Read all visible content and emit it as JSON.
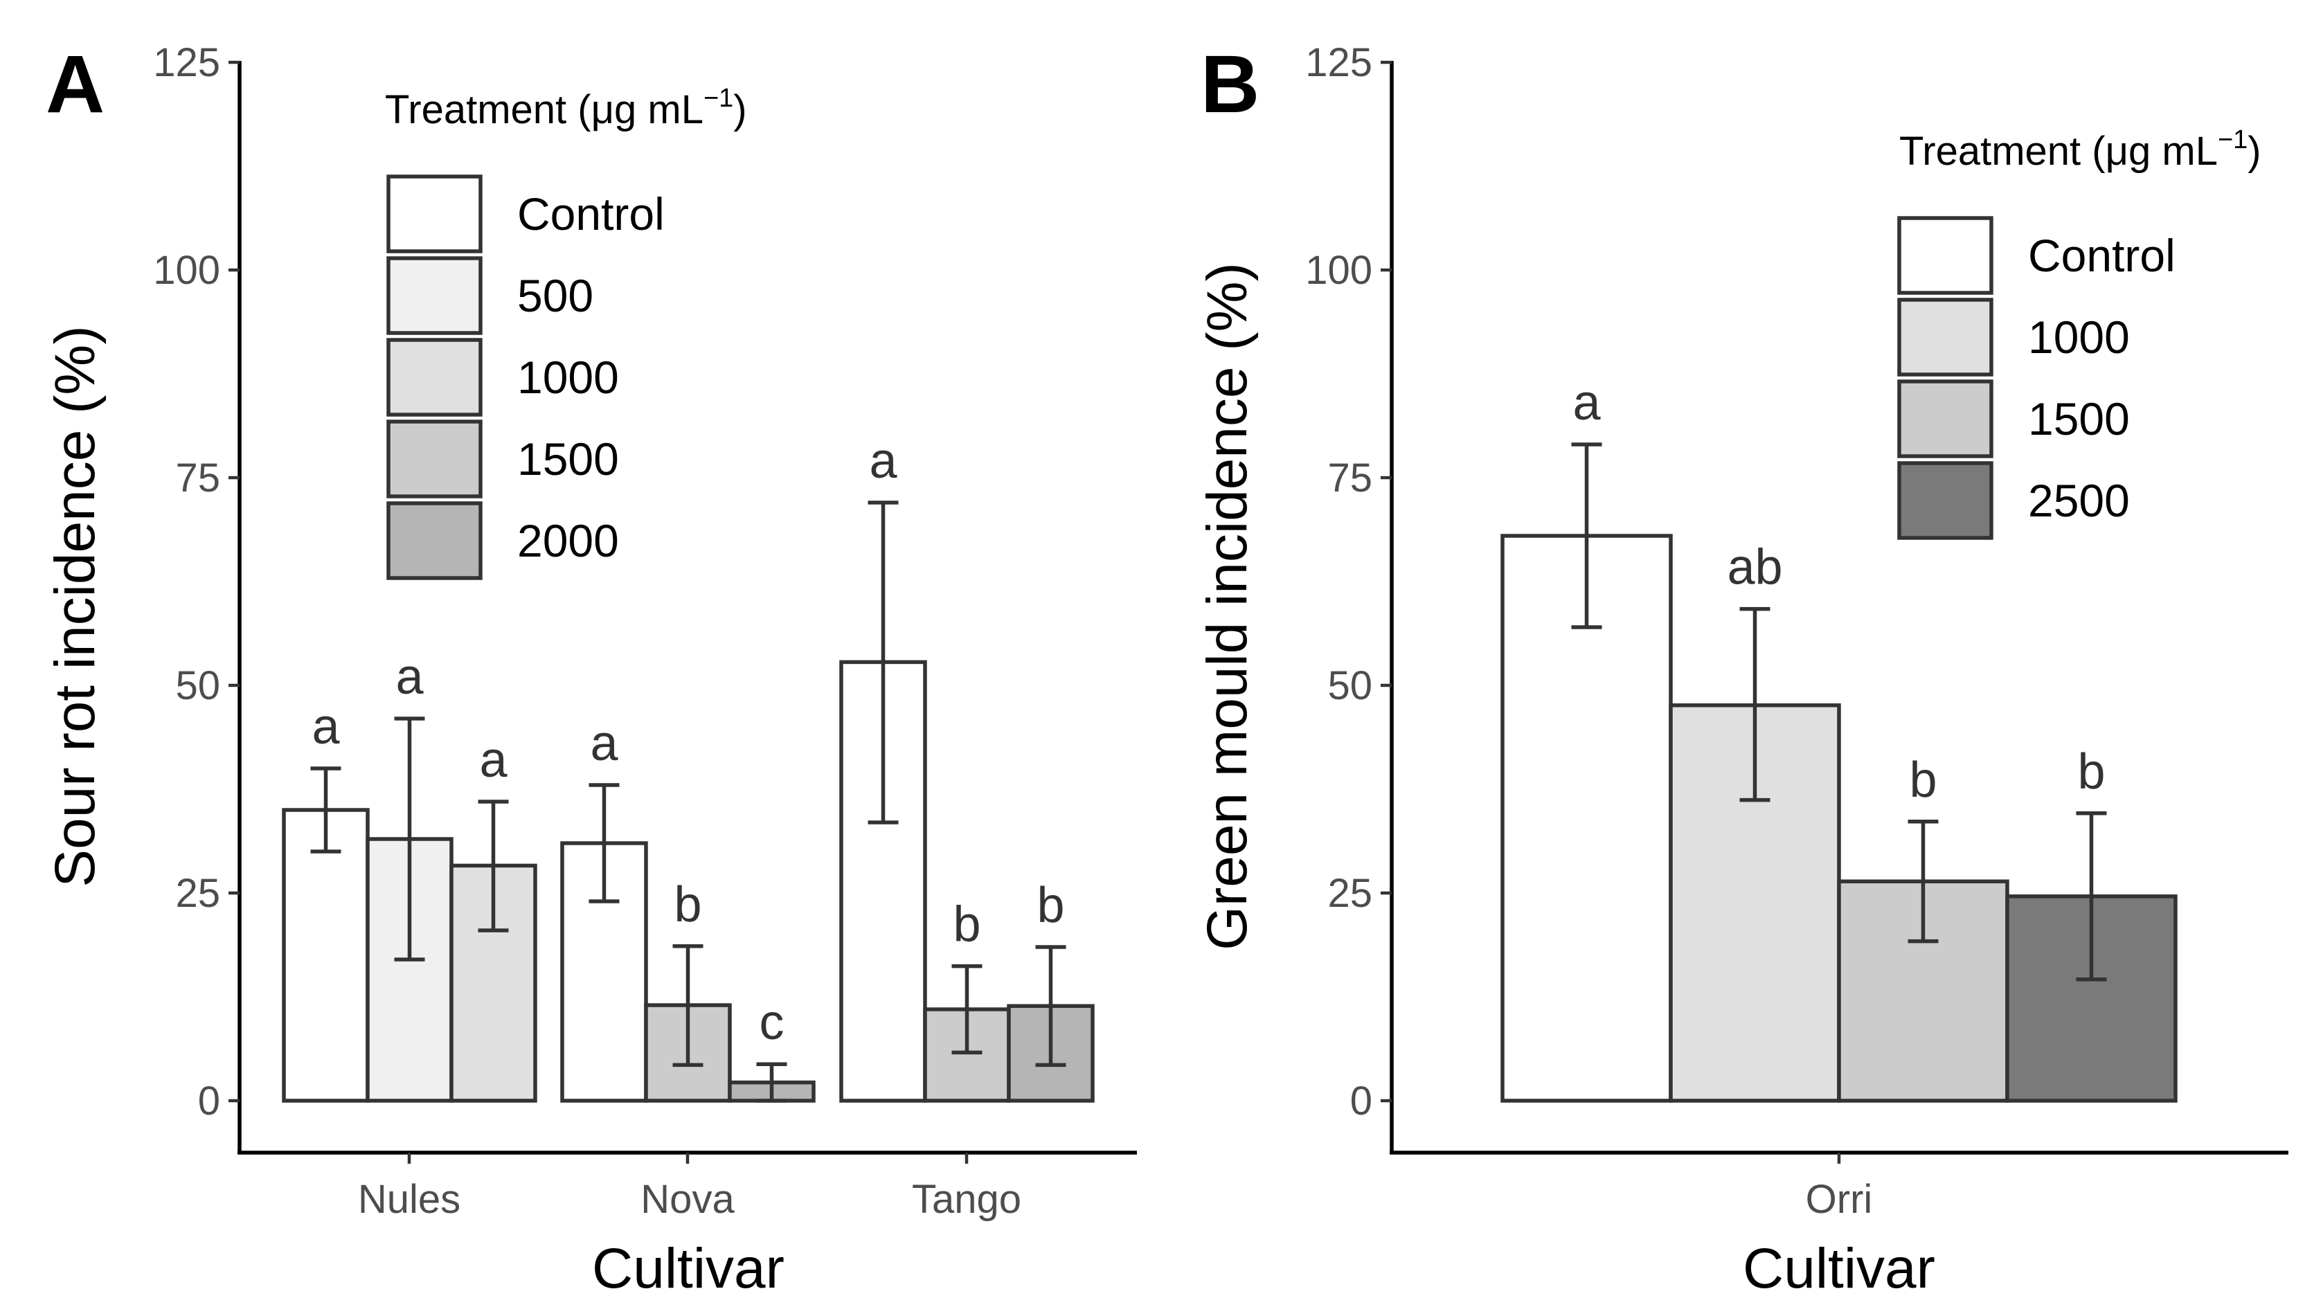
{
  "chart_data": [
    {
      "panel": "A",
      "type": "bar",
      "xlabel": "Cultivar",
      "ylabel": "Sour rot incidence (%)",
      "ylim": [
        0,
        125
      ],
      "yticks": [
        0,
        25,
        50,
        75,
        100,
        125
      ],
      "legend": {
        "title_main": "Treatment (",
        "title_mu": "μ",
        "title_unit": "g mL",
        "title_sup": "−1",
        "title_close": ")",
        "placement": "top-left",
        "entries": [
          {
            "label": "Control",
            "color": "#ffffff"
          },
          {
            "label": "500",
            "color": "#f0f0f0"
          },
          {
            "label": "1000",
            "color": "#e0e0e0"
          },
          {
            "label": "1500",
            "color": "#cccccc"
          },
          {
            "label": "2000",
            "color": "#b5b5b5"
          }
        ]
      },
      "groups": [
        {
          "category": "Nules",
          "bars": [
            {
              "treatment": "Control",
              "value": 35,
              "err_low": 30,
              "err_high": 40,
              "letter": "a",
              "color": "#ffffff"
            },
            {
              "treatment": "500",
              "value": 31.5,
              "err_low": 17,
              "err_high": 46,
              "letter": "a",
              "color": "#f0f0f0"
            },
            {
              "treatment": "1000",
              "value": 28.3,
              "err_low": 20.5,
              "err_high": 36,
              "letter": "a",
              "color": "#e0e0e0"
            }
          ]
        },
        {
          "category": "Nova",
          "bars": [
            {
              "treatment": "Control",
              "value": 31,
              "err_low": 24,
              "err_high": 38,
              "letter": "a",
              "color": "#ffffff"
            },
            {
              "treatment": "1500",
              "value": 11.5,
              "err_low": 4.3,
              "err_high": 18.6,
              "letter": "b",
              "color": "#cccccc"
            },
            {
              "treatment": "2000",
              "value": 2.2,
              "err_low": 0,
              "err_high": 4.4,
              "letter": "c",
              "color": "#b5b5b5"
            }
          ]
        },
        {
          "category": "Tango",
          "bars": [
            {
              "treatment": "Control",
              "value": 52.8,
              "err_low": 33.5,
              "err_high": 72,
              "letter": "a",
              "color": "#ffffff"
            },
            {
              "treatment": "1500",
              "value": 11,
              "err_low": 5.8,
              "err_high": 16.2,
              "letter": "b",
              "color": "#cccccc"
            },
            {
              "treatment": "2000",
              "value": 11.4,
              "err_low": 4.3,
              "err_high": 18.5,
              "letter": "b",
              "color": "#b5b5b5"
            }
          ]
        }
      ]
    },
    {
      "panel": "B",
      "type": "bar",
      "xlabel": "Cultivar",
      "ylabel": "Green mould incidence (%)",
      "ylim": [
        0,
        125
      ],
      "yticks": [
        0,
        25,
        50,
        75,
        100,
        125
      ],
      "legend": {
        "title_main": "Treatment (",
        "title_mu": "μ",
        "title_unit": "g mL",
        "title_sup": "−1",
        "title_close": ")",
        "placement": "top-right",
        "entries": [
          {
            "label": "Control",
            "color": "#ffffff"
          },
          {
            "label": "1000",
            "color": "#e0e0e0"
          },
          {
            "label": "1500",
            "color": "#cccccc"
          },
          {
            "label": "2500",
            "color": "#7a7a7a"
          }
        ]
      },
      "groups": [
        {
          "category": "Orri",
          "bars": [
            {
              "treatment": "Control",
              "value": 68,
              "err_low": 57,
              "err_high": 79,
              "letter": "a",
              "color": "#ffffff"
            },
            {
              "treatment": "1000",
              "value": 47.6,
              "err_low": 36.2,
              "err_high": 59.2,
              "letter": "ab",
              "color": "#e0e0e0"
            },
            {
              "treatment": "1500",
              "value": 26.4,
              "err_low": 19.2,
              "err_high": 33.6,
              "letter": "b",
              "color": "#cccccc"
            },
            {
              "treatment": "2500",
              "value": 24.6,
              "err_low": 14.6,
              "err_high": 34.6,
              "letter": "b",
              "color": "#7a7a7a"
            }
          ]
        }
      ]
    }
  ]
}
